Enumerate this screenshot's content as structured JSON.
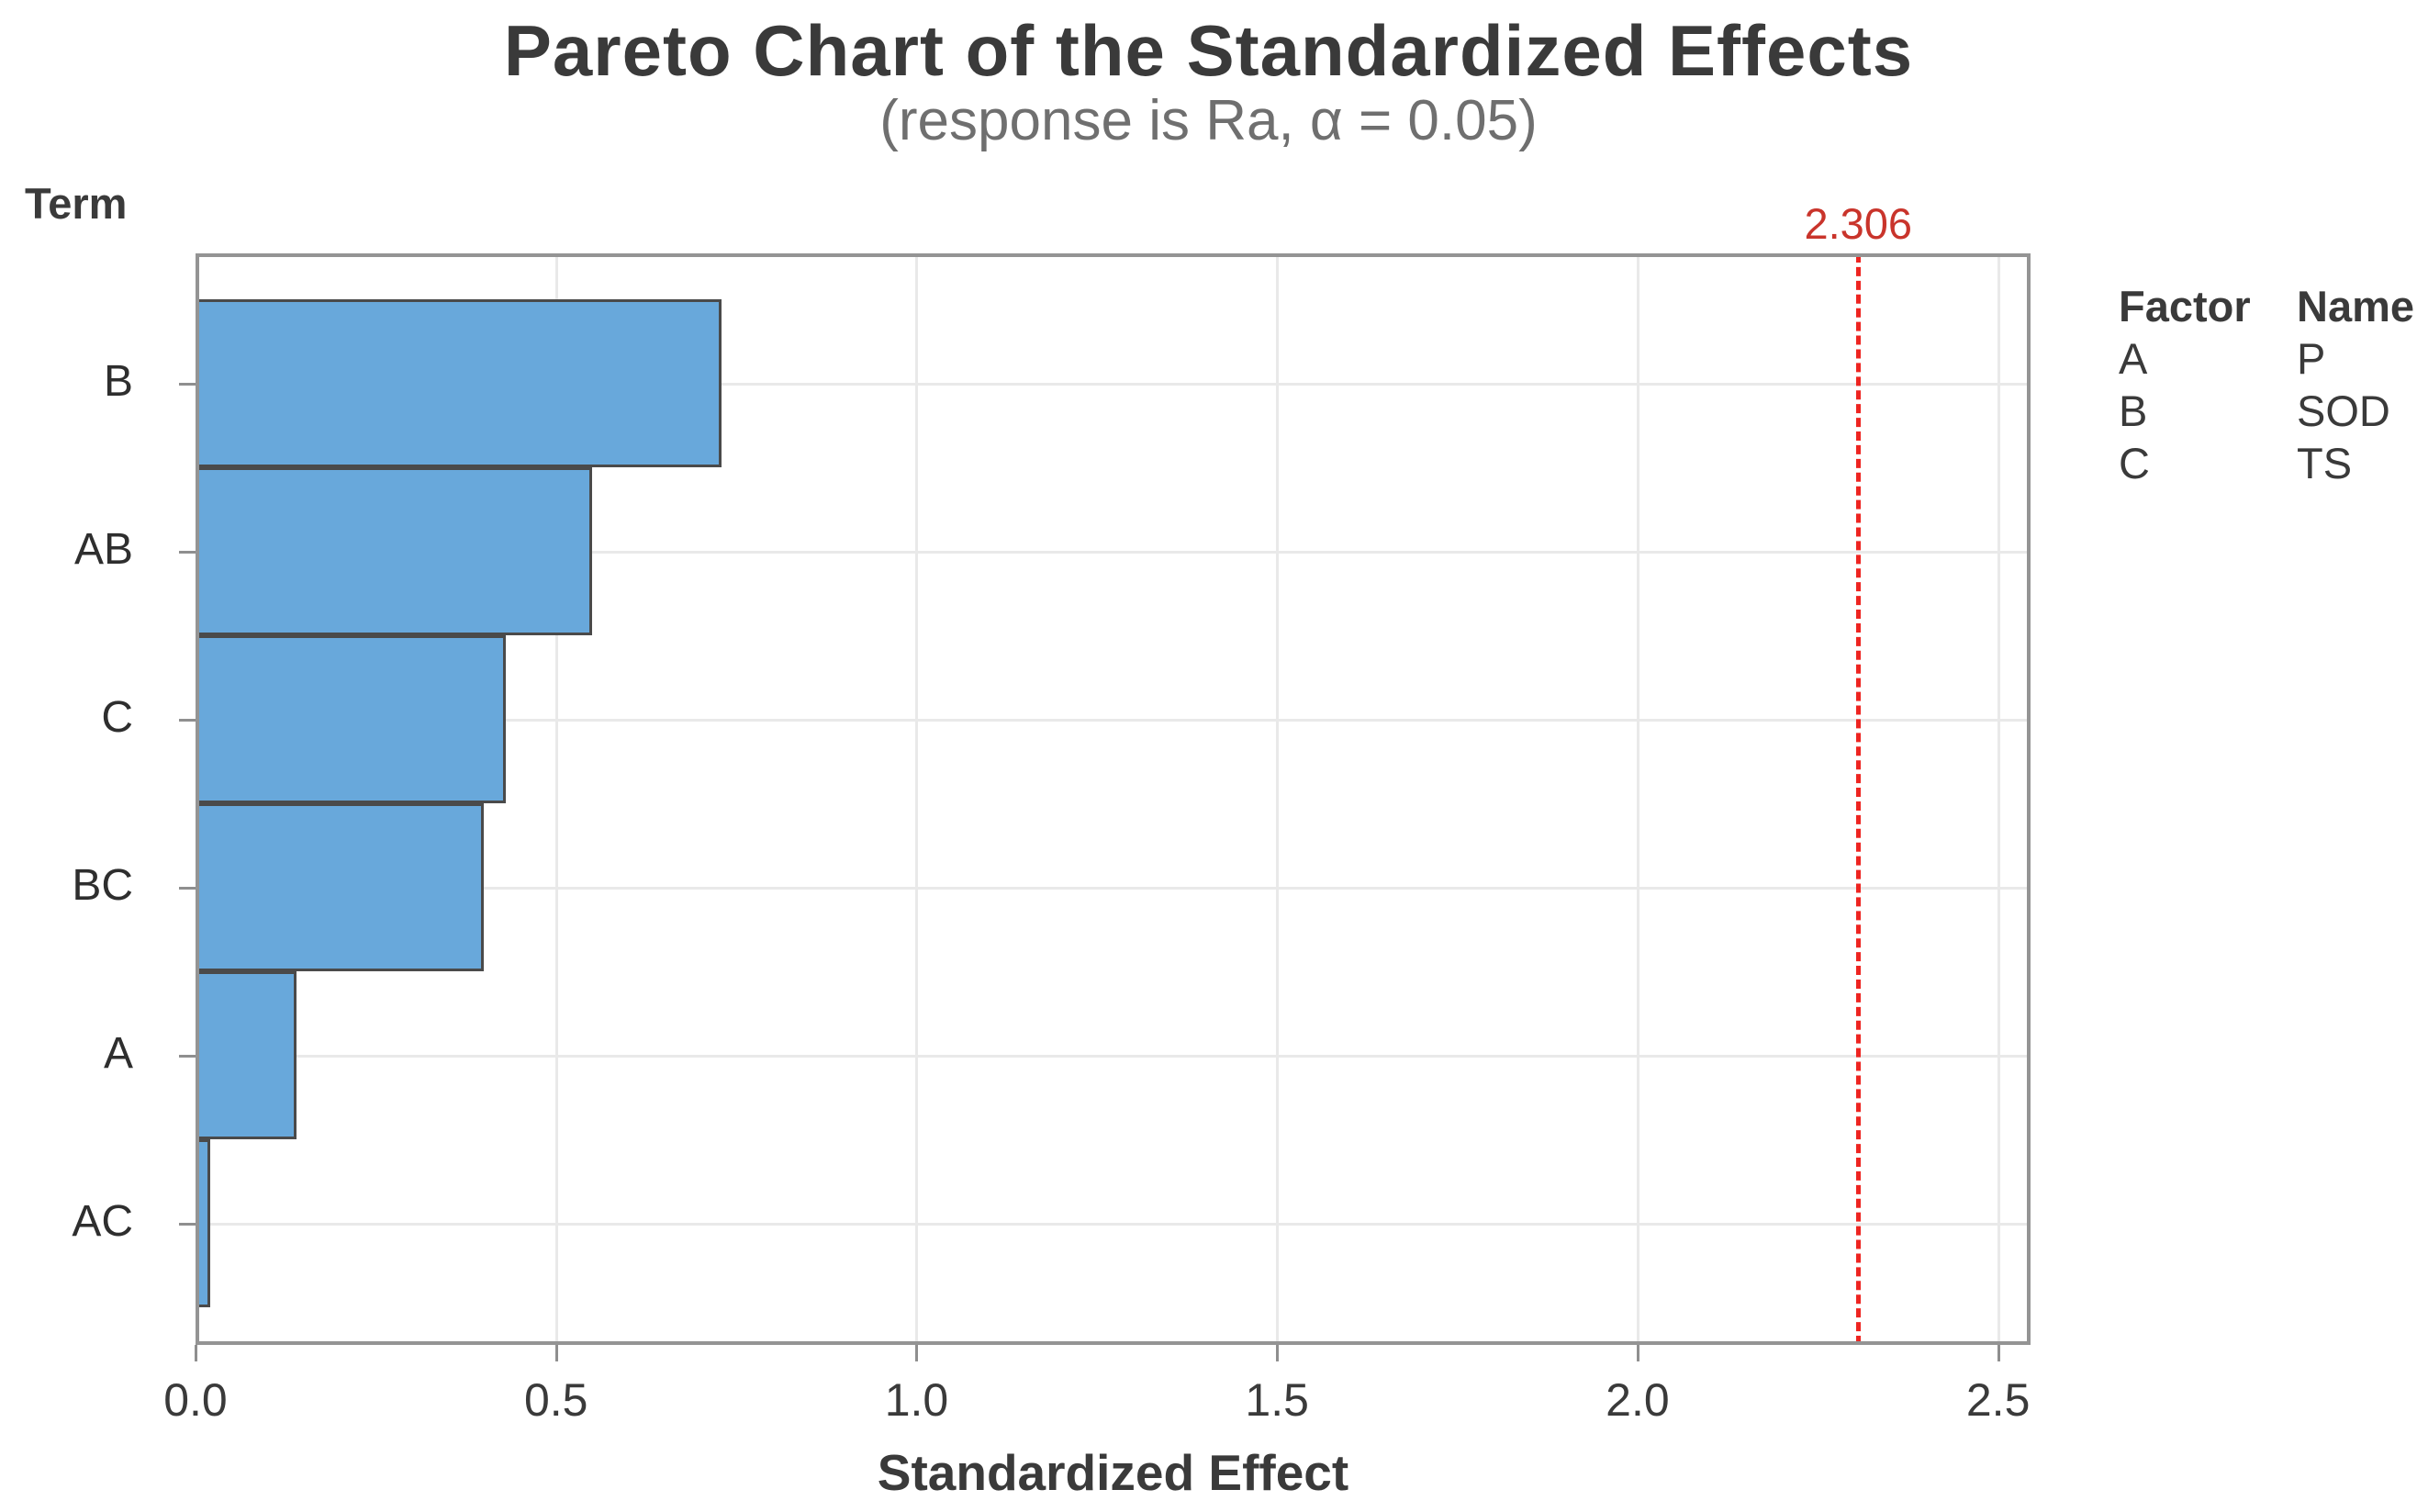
{
  "title": "Pareto Chart of the Standardized Effects",
  "subtitle": "(response is Ra, α = 0.05)",
  "y_axis_title": "Term",
  "x_axis_title": "Standardized Effect",
  "reference_line": {
    "label": "2.306",
    "value": 2.306,
    "line_color": "#ee2420",
    "label_color": "#c9342b"
  },
  "chart_data": {
    "type": "bar",
    "orientation": "horizontal",
    "title": "Pareto Chart of the Standardized Effects",
    "subtitle": "(response is Ra, α = 0.05)",
    "xlabel": "Standardized Effect",
    "ylabel": "Term",
    "categories": [
      "B",
      "AB",
      "C",
      "BC",
      "A",
      "AC"
    ],
    "values": [
      0.73,
      0.55,
      0.43,
      0.4,
      0.14,
      0.02
    ],
    "xlim": [
      0,
      2.545
    ],
    "x_ticks": [
      0.0,
      0.5,
      1.0,
      1.5,
      2.0,
      2.5
    ],
    "x_tick_labels": [
      "0.0",
      "0.5",
      "1.0",
      "1.5",
      "2.0",
      "2.5"
    ],
    "reference_line_value": 2.306,
    "grid": true,
    "legend_position": "right-outside"
  },
  "legend": {
    "headers": [
      "Factor",
      "Name"
    ],
    "rows": [
      [
        "A",
        "P"
      ],
      [
        "B",
        "SOD"
      ],
      [
        "C",
        "TS"
      ]
    ]
  },
  "colors": {
    "bar_fill": "#68a8db",
    "bar_edge": "#4a4a4a",
    "frame": "#949494",
    "gridline": "#e9e9e9",
    "tick_mark": "#8f8f8f",
    "text_dark": "#3a3a3a",
    "subtitle_gray": "#6f6f6f",
    "reference_red": "#ee2420"
  }
}
